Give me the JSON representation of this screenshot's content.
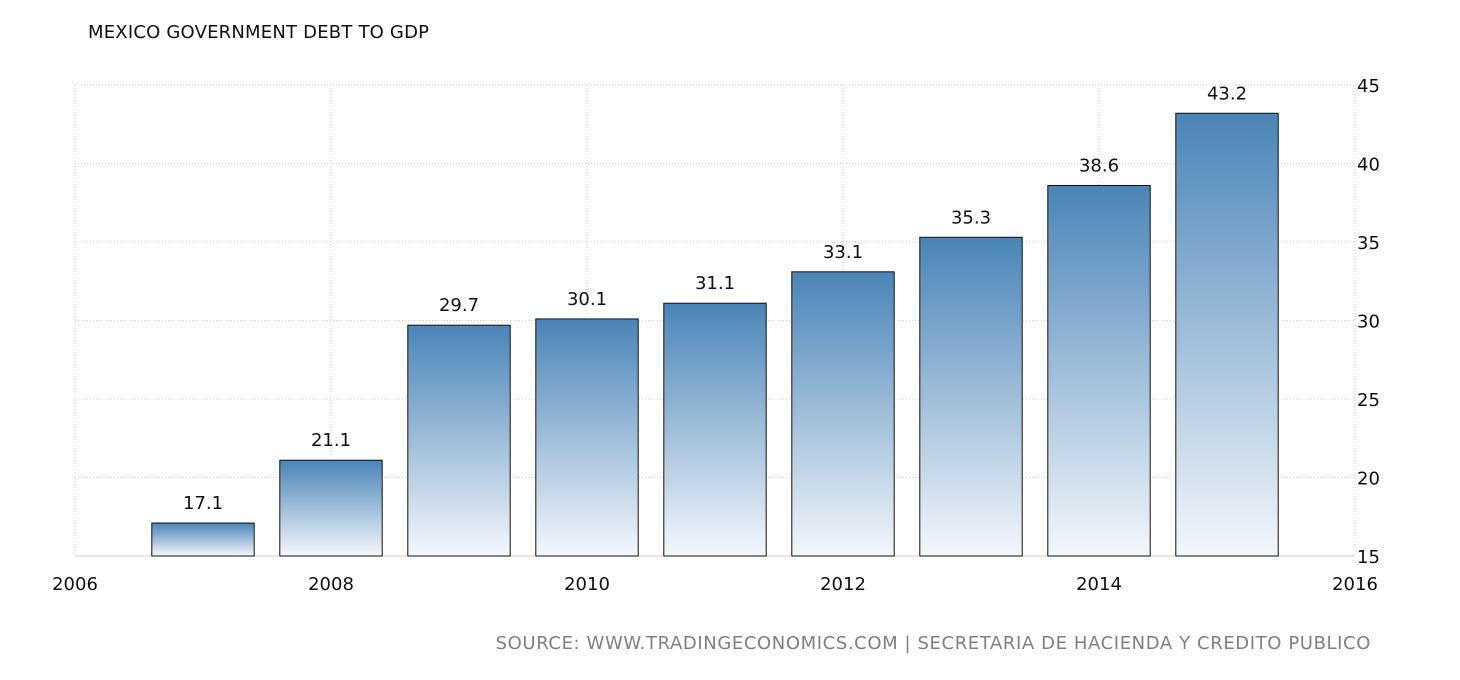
{
  "chart_data": {
    "type": "bar",
    "title": "MEXICO GOVERNMENT DEBT TO GDP",
    "categories": [
      "2007",
      "2008",
      "2009",
      "2010",
      "2011",
      "2012",
      "2013",
      "2014",
      "2015"
    ],
    "x": [
      2007,
      2008,
      2009,
      2010,
      2011,
      2012,
      2013,
      2014,
      2015
    ],
    "values": [
      17.1,
      21.1,
      29.7,
      30.1,
      31.1,
      33.1,
      35.3,
      38.6,
      43.2
    ],
    "value_labels": [
      "17.1",
      "21.1",
      "29.7",
      "30.1",
      "31.1",
      "33.1",
      "35.3",
      "38.6",
      "43.2"
    ],
    "xlim": [
      2006,
      2016
    ],
    "ylim": [
      15,
      45
    ],
    "x_ticks": [
      "2006",
      "2008",
      "2010",
      "2012",
      "2014",
      "2016"
    ],
    "y_ticks": [
      "15",
      "20",
      "25",
      "30",
      "35",
      "40",
      "45"
    ],
    "y_axis_side": "right",
    "grid": true,
    "bar_color_top": "#4a84b7",
    "bar_color_bottom": "#f4f7fb",
    "bar_outline": "#111111"
  },
  "source": "SOURCE: WWW.TRADINGECONOMICS.COM | SECRETARIA DE HACIENDA Y CREDITO PUBLICO"
}
